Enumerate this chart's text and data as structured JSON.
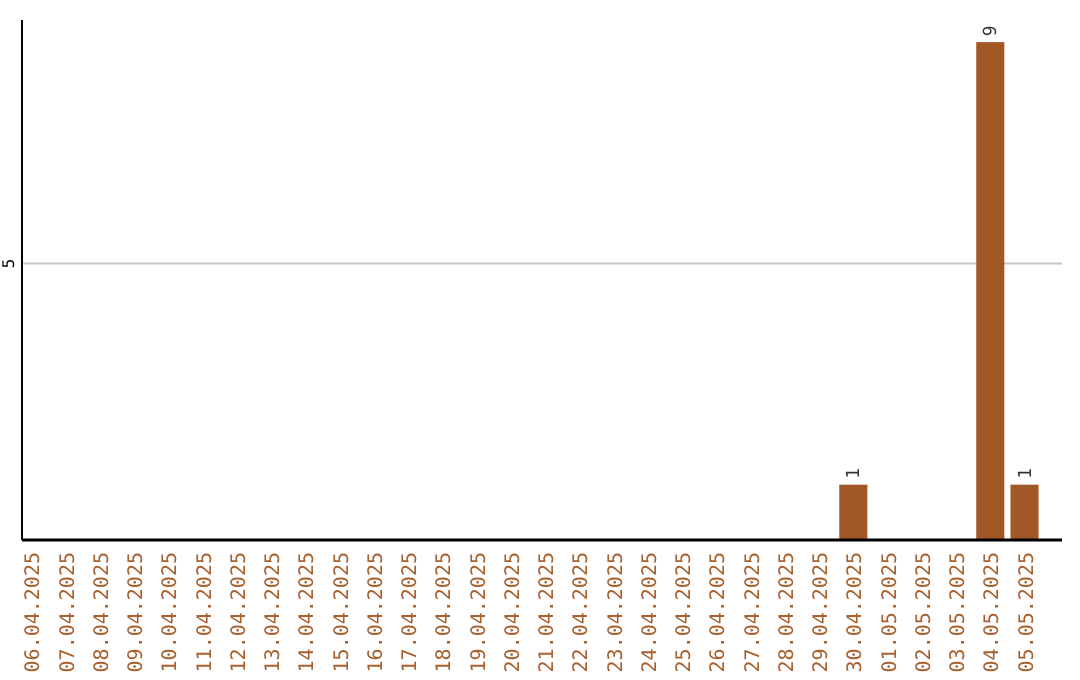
{
  "chart_data": {
    "type": "bar",
    "categories": [
      "06.04.2025",
      "07.04.2025",
      "08.04.2025",
      "09.04.2025",
      "10.04.2025",
      "11.04.2025",
      "12.04.2025",
      "13.04.2025",
      "14.04.2025",
      "15.04.2025",
      "16.04.2025",
      "17.04.2025",
      "18.04.2025",
      "19.04.2025",
      "20.04.2025",
      "21.04.2025",
      "22.04.2025",
      "23.04.2025",
      "24.04.2025",
      "25.04.2025",
      "26.04.2025",
      "27.04.2025",
      "28.04.2025",
      "29.04.2025",
      "30.04.2025",
      "01.05.2025",
      "02.05.2025",
      "03.05.2025",
      "04.05.2025",
      "05.05.2025"
    ],
    "values": [
      null,
      null,
      null,
      null,
      null,
      null,
      null,
      null,
      null,
      null,
      null,
      null,
      null,
      null,
      null,
      null,
      null,
      null,
      null,
      null,
      null,
      null,
      null,
      null,
      1,
      null,
      null,
      null,
      9,
      1
    ],
    "data_labels": true,
    "ylim": [
      0,
      9.4
    ],
    "color": "#a25726",
    "ref_lines": [
      {
        "axis": "y",
        "value": 5,
        "label": "5",
        "color": "#c8c8c8"
      }
    ]
  }
}
